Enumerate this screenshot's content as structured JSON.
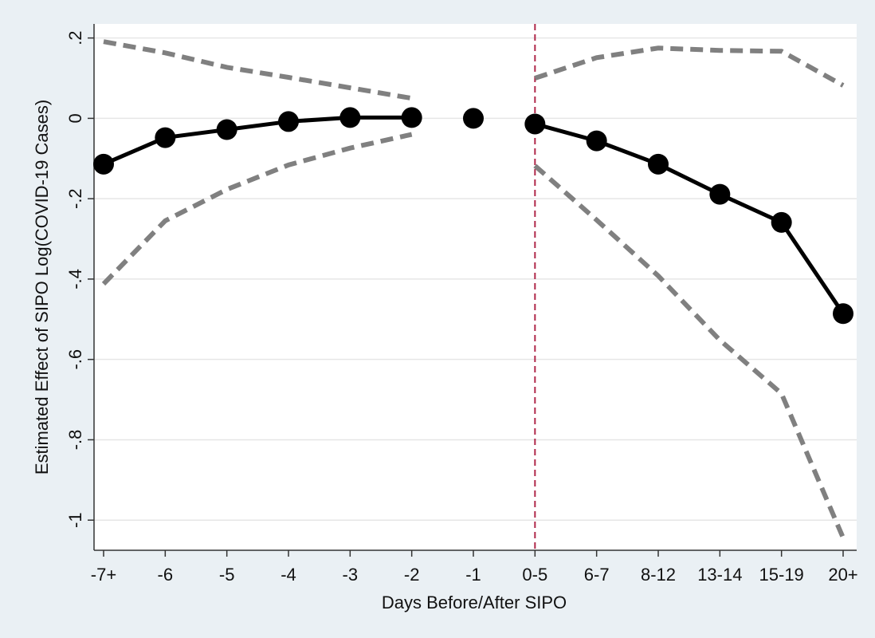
{
  "chart_data": {
    "type": "line",
    "x_label": "Days Before/After SIPO",
    "y_label": "Estimated Effect of SIPO Log(COVID-19 Cases)",
    "categories": [
      "-7+",
      "-6",
      "-5",
      "-4",
      "-3",
      "-2",
      "-1",
      "0-5",
      "6-7",
      "8-12",
      "13-14",
      "15-19",
      "20+"
    ],
    "ylim": [
      -1.075,
      0.235
    ],
    "yticks": [
      {
        "value": 0.2,
        "label": ".2"
      },
      0,
      {
        "value": -0.2,
        "label": "-.2"
      },
      {
        "value": -0.4,
        "label": "-.4"
      },
      {
        "value": -0.6,
        "label": "-.6"
      },
      {
        "value": -0.8,
        "label": "-.8"
      },
      -1
    ],
    "grid": true,
    "xline": {
      "x": "0-5",
      "color": "#b0284a"
    },
    "series": [
      {
        "color": "#000000",
        "line": "solid",
        "markers": true,
        "values": [
          -0.114,
          -0.048,
          -0.028,
          -0.008,
          0.002,
          0.002,
          null,
          null,
          null,
          null,
          null,
          null,
          null
        ]
      },
      {
        "color": "#000000",
        "line": "none",
        "markers": true,
        "values": [
          null,
          null,
          null,
          null,
          null,
          null,
          0,
          null,
          null,
          null,
          null,
          null,
          null
        ]
      },
      {
        "color": "#000000",
        "line": "solid",
        "markers": true,
        "values": [
          null,
          null,
          null,
          null,
          null,
          null,
          null,
          -0.014,
          -0.056,
          -0.114,
          -0.189,
          -0.259,
          -0.486
        ]
      },
      {
        "color": "#808080",
        "line": "dashed",
        "markers": false,
        "values": [
          0.191,
          0.163,
          0.127,
          0.102,
          0.076,
          0.05,
          null,
          0.1,
          0.151,
          0.175,
          0.169,
          0.167,
          0.082
        ]
      },
      {
        "color": "#808080",
        "line": "dashed",
        "markers": false,
        "values": [
          -0.412,
          -0.255,
          -0.177,
          -0.116,
          -0.074,
          -0.04,
          null,
          -0.118,
          -0.253,
          -0.392,
          -0.552,
          -0.685,
          -1.044
        ]
      }
    ]
  }
}
